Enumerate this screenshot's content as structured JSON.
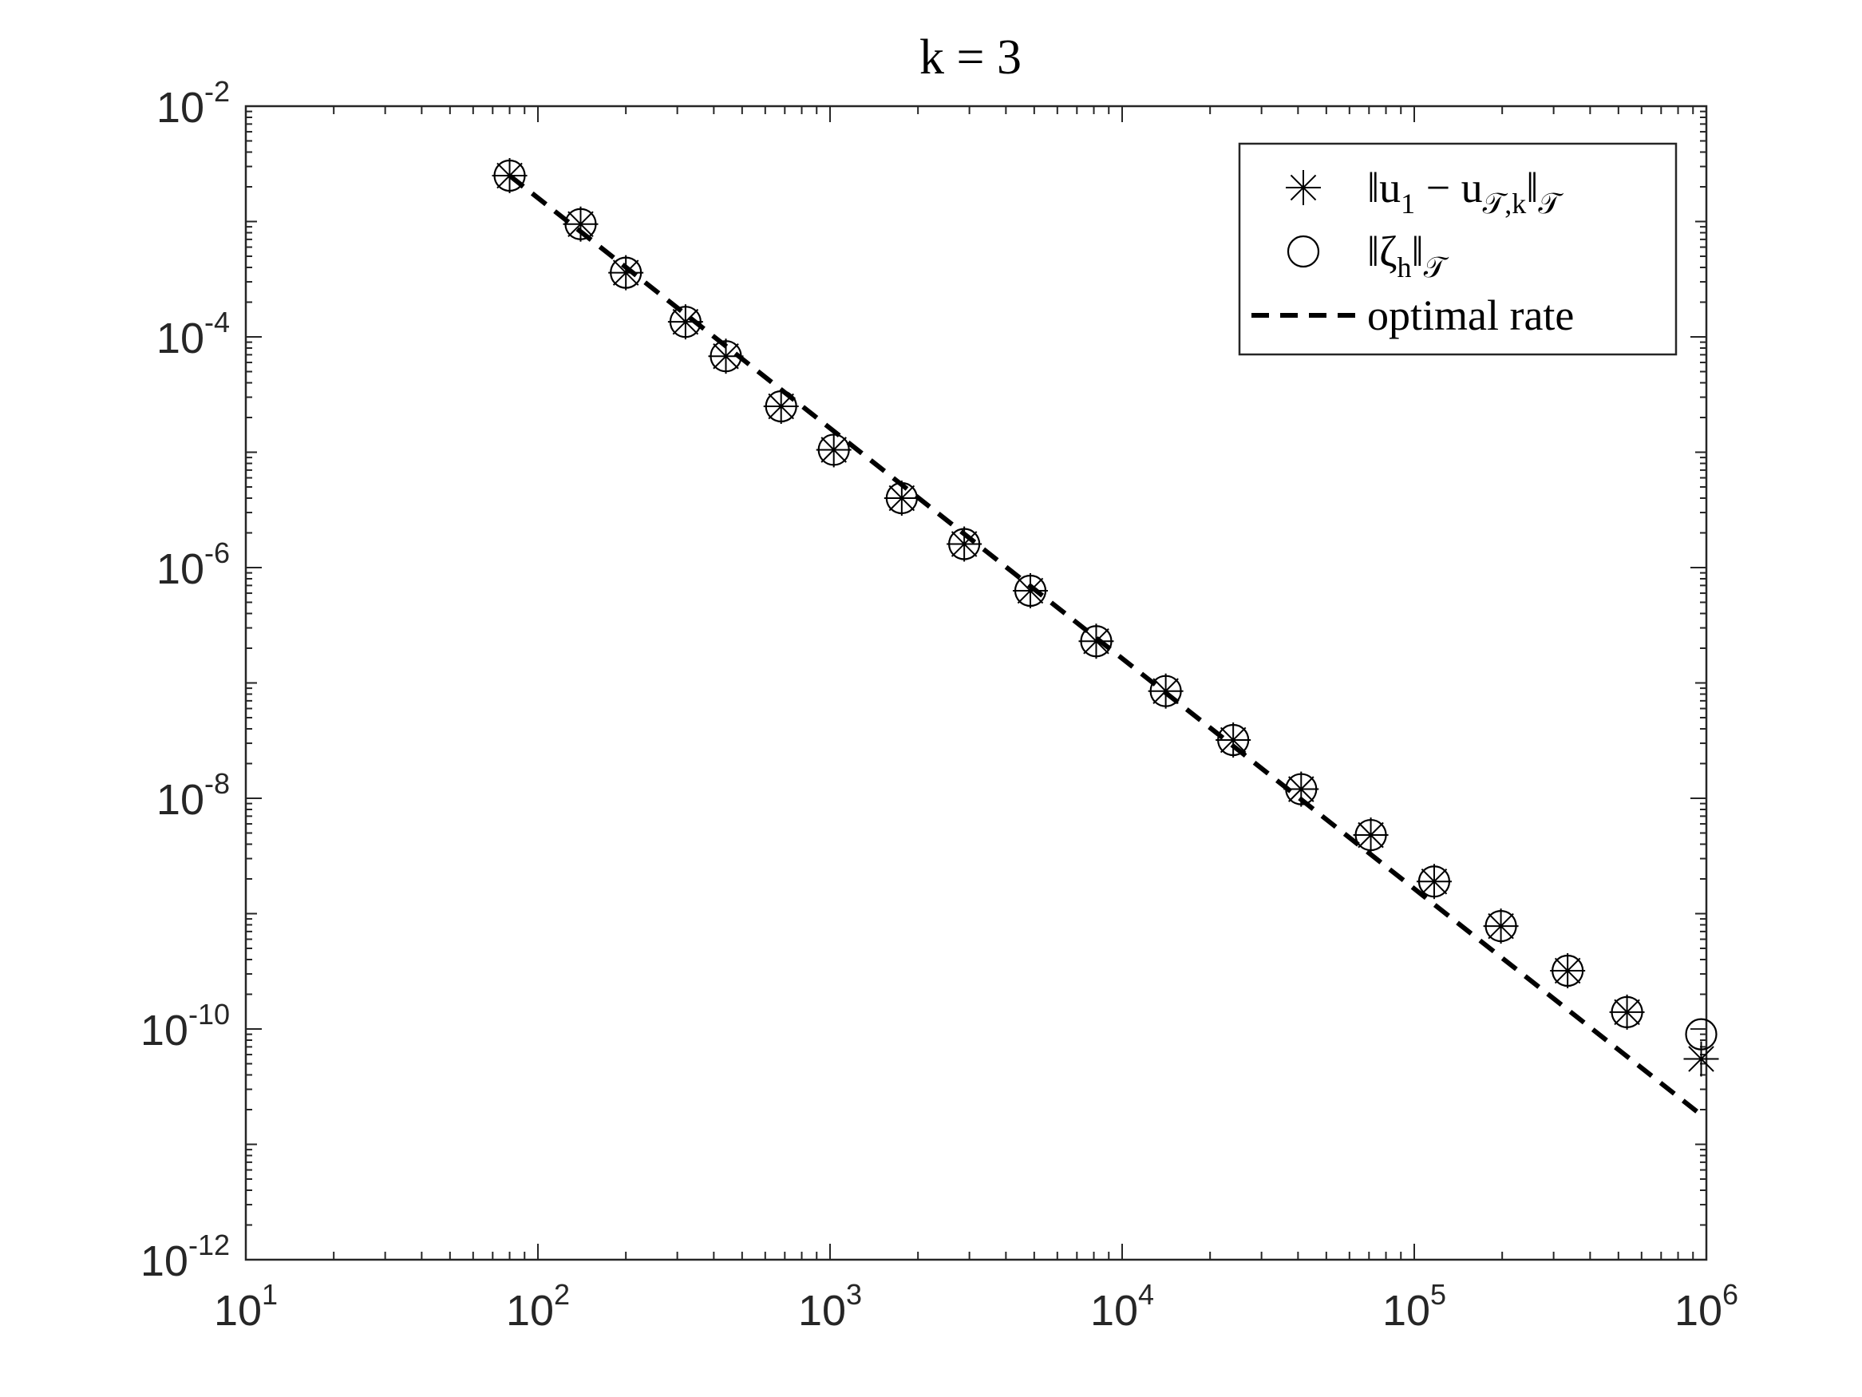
{
  "chart_data": {
    "type": "scatter",
    "title": "k = 3",
    "xlabel": "",
    "ylabel": "",
    "xscale": "log",
    "yscale": "log",
    "xlim": [
      10,
      1000000
    ],
    "ylim": [
      1e-12,
      0.01
    ],
    "grid": false,
    "legend_position": "top-right",
    "x_tick_labels": [
      {
        "base": "10",
        "exp": "1"
      },
      {
        "base": "10",
        "exp": "2"
      },
      {
        "base": "10",
        "exp": "3"
      },
      {
        "base": "10",
        "exp": "4"
      },
      {
        "base": "10",
        "exp": "5"
      },
      {
        "base": "10",
        "exp": "6"
      }
    ],
    "y_tick_labels": [
      {
        "base": "10",
        "exp": "-2"
      },
      {
        "base": "10",
        "exp": "-4"
      },
      {
        "base": "10",
        "exp": "-6"
      },
      {
        "base": "10",
        "exp": "-8"
      },
      {
        "base": "10",
        "exp": "-10"
      },
      {
        "base": "10",
        "exp": "-12"
      }
    ],
    "x": [
      80,
      140,
      200,
      320,
      440,
      680,
      1030,
      1760,
      2880,
      4850,
      8150,
      14100,
      24000,
      41000,
      71000,
      117000,
      198000,
      335000,
      535000,
      960000
    ],
    "series": [
      {
        "name": "‖u1 − u𝒯,k‖𝒯",
        "legend": {
          "main": "‖u",
          "sub1": "1",
          "middle": " − u",
          "sub2": "𝒯,k",
          "end": "‖",
          "sub3": "𝒯"
        },
        "marker": "asterisk",
        "y": [
          0.0025,
          0.00095,
          0.00036,
          0.000135,
          6.8e-05,
          2.5e-05,
          1.05e-05,
          4e-06,
          1.6e-06,
          6.3e-07,
          2.3e-07,
          8.5e-08,
          3.2e-08,
          1.2e-08,
          4.8e-09,
          1.9e-09,
          7.8e-10,
          3.2e-10,
          1.4e-10,
          5.5e-11
        ]
      },
      {
        "name": "‖ζh‖𝒯",
        "legend": {
          "main": "‖ζ",
          "sub1": "h",
          "end": "‖",
          "sub3": "𝒯"
        },
        "marker": "circle",
        "y": [
          0.0025,
          0.00095,
          0.00036,
          0.000135,
          6.8e-05,
          2.5e-05,
          1.05e-05,
          4e-06,
          1.6e-06,
          6.3e-07,
          2.3e-07,
          8.5e-08,
          3.2e-08,
          1.2e-08,
          4.8e-09,
          1.9e-09,
          7.8e-10,
          3.2e-10,
          1.4e-10,
          9e-11
        ]
      },
      {
        "name": "optimal rate",
        "marker": "none",
        "line": "dashed",
        "x": [
          80,
          960000
        ],
        "y": [
          0.0025,
          1.8e-11
        ]
      }
    ],
    "colors": {
      "ink": "#000000",
      "axis": "#262626"
    }
  }
}
